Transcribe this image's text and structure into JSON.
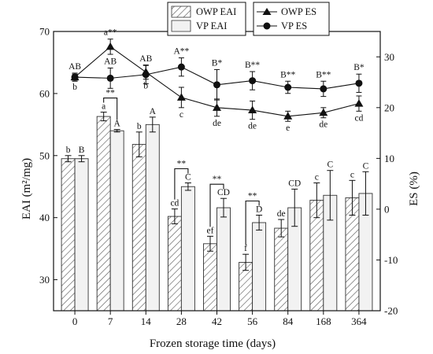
{
  "chart_data": {
    "type": "bar",
    "categories": [
      "0",
      "7",
      "14",
      "28",
      "42",
      "56",
      "84",
      "168",
      "364"
    ],
    "xlabel": "Frozen storage time (days)",
    "ylabel_left": "EAI (m²/mg)",
    "ylabel_right": "ES (%)",
    "ylim_left": [
      25,
      70
    ],
    "ylim_right": [
      -20,
      35
    ],
    "yticks_left": [
      "30",
      "40",
      "50",
      "60",
      "70"
    ],
    "yticks_right": [
      "-20",
      "-10",
      "0",
      "10",
      "20",
      "30"
    ],
    "bar_series": [
      {
        "name": "OWP EAI",
        "values": [
          49.5,
          56.3,
          51.8,
          40.2,
          35.8,
          32.8,
          38.3,
          42.8,
          43.2
        ],
        "errors": [
          0.5,
          0.7,
          2.0,
          1.2,
          1.2,
          1.3,
          1.4,
          2.8,
          2.8
        ],
        "labels": [
          "b",
          "a",
          "b",
          "cd",
          "ef",
          "f",
          "de",
          "c",
          "c"
        ]
      },
      {
        "name": "VP EAI",
        "values": [
          49.5,
          54.0,
          55.0,
          45.0,
          41.6,
          39.2,
          41.6,
          43.6,
          43.9
        ],
        "errors": [
          0.5,
          0.2,
          1.2,
          0.6,
          1.5,
          1.2,
          3.0,
          4.0,
          3.5
        ],
        "labels": [
          "B",
          "A",
          "A",
          "C",
          "CD",
          "D",
          "CD",
          "C",
          "C"
        ]
      }
    ],
    "line_series": [
      {
        "name": "OWP ES",
        "marker": "triangle",
        "values": [
          26,
          32,
          27,
          22,
          20,
          19.5,
          18.3,
          19,
          20.8
        ],
        "errors": [
          0.6,
          1.5,
          1.4,
          2.0,
          1.7,
          1.8,
          1.0,
          1.0,
          1.5
        ],
        "labels": [
          "b",
          "a**",
          "b",
          "c",
          "de",
          "de",
          "e",
          "de",
          "cd"
        ]
      },
      {
        "name": "VP ES",
        "marker": "circle",
        "values": [
          26,
          25.8,
          26.5,
          28,
          24.5,
          25.3,
          24,
          23.7,
          24.8
        ],
        "errors": [
          0.8,
          2.0,
          1.8,
          1.8,
          3.0,
          1.8,
          1.2,
          1.5,
          1.8
        ],
        "labels": [
          "AB",
          "AB",
          "AB",
          "A**",
          "B*",
          "B**",
          "B**",
          "B**",
          "B*"
        ]
      }
    ],
    "brackets": [
      {
        "category_index": 1,
        "label": "**"
      },
      {
        "category_index": 3,
        "label": "**"
      },
      {
        "category_index": 4,
        "label": "**"
      },
      {
        "category_index": 5,
        "label": "**"
      }
    ],
    "legend": {
      "placement": "top-center",
      "items": [
        "OWP EAI",
        "VP EAI",
        "OWP ES",
        "VP ES"
      ]
    }
  }
}
